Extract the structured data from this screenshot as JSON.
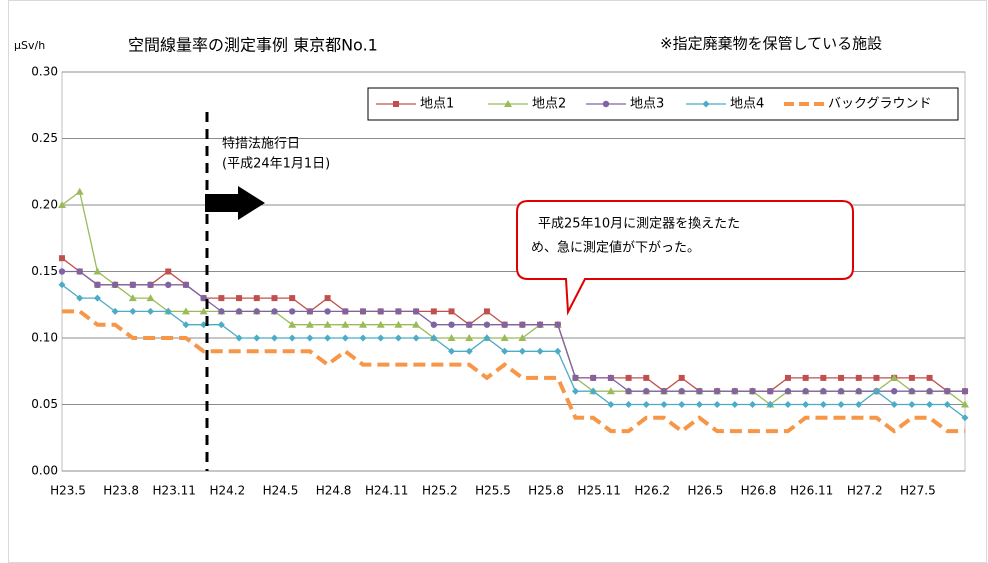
{
  "chart_data": {
    "type": "line",
    "title": "空間線量率の測定事例  東京都No.1",
    "subtitle": "※指定廃棄物を保管している施設",
    "y_label": "μSv/h",
    "annotations": [
      "特措法施行日",
      "(平成24年1月1日)",
      "平成25年10月に測定器を換えたた",
      "め、急に測定値が下がった。"
    ],
    "categories": [
      "H23.5",
      null,
      null,
      "H23.8",
      null,
      null,
      "H23.11",
      null,
      null,
      "H24.2",
      null,
      null,
      "H24.5",
      null,
      null,
      "H24.8",
      null,
      null,
      "H24.11",
      null,
      null,
      "H25.2",
      null,
      null,
      "H25.5",
      null,
      null,
      "H25.8",
      null,
      null,
      "H25.11",
      null,
      null,
      "H26.2",
      null,
      null,
      "H26.5",
      null,
      null,
      "H26.8",
      null,
      null,
      "H26.11",
      null,
      null,
      "H27.2",
      null,
      null,
      "H27.5",
      null,
      null,
      null
    ],
    "ylim": [
      0,
      0.3
    ],
    "yticks": [
      {
        "value": 0,
        "label": "0.00"
      },
      0.05,
      {
        "value": 0.1,
        "label": "0.10"
      },
      0.15,
      {
        "value": 0.2,
        "label": "0.20"
      },
      0.25,
      {
        "value": 0.3,
        "label": "0.30"
      }
    ],
    "grid": true,
    "legend": "top-right",
    "series": [
      {
        "name": "地点1",
        "color": "#c0504d",
        "marker": "square",
        "values": [
          0.16,
          0.15,
          0.14,
          0.14,
          0.14,
          0.14,
          0.15,
          0.14,
          0.13,
          0.13,
          0.13,
          0.13,
          0.13,
          0.13,
          0.12,
          0.13,
          0.12,
          0.12,
          0.12,
          0.12,
          0.12,
          0.12,
          0.12,
          0.11,
          0.12,
          0.11,
          0.11,
          0.11,
          0.11,
          0.07,
          0.07,
          0.07,
          0.07,
          0.07,
          0.06,
          0.07,
          0.06,
          0.06,
          0.06,
          0.06,
          0.06,
          0.07,
          0.07,
          0.07,
          0.07,
          0.07,
          0.07,
          0.07,
          0.07,
          0.07,
          0.06,
          0.06
        ]
      },
      {
        "name": "地点2",
        "color": "#9bbb59",
        "marker": "triangle",
        "values": [
          0.2,
          0.21,
          0.15,
          0.14,
          0.13,
          0.13,
          0.12,
          0.12,
          0.12,
          0.12,
          0.12,
          0.12,
          0.12,
          0.11,
          0.11,
          0.11,
          0.11,
          0.11,
          0.11,
          0.11,
          0.11,
          0.1,
          0.1,
          0.1,
          0.1,
          0.1,
          0.1,
          0.11,
          0.11,
          0.07,
          0.06,
          0.06,
          0.06,
          0.06,
          0.06,
          0.06,
          0.06,
          0.06,
          0.06,
          0.06,
          0.05,
          0.06,
          0.06,
          0.06,
          0.06,
          0.06,
          0.06,
          0.07,
          0.06,
          0.06,
          0.06,
          0.05
        ]
      },
      {
        "name": "地点3",
        "color": "#8064a2",
        "marker": "circle",
        "values": [
          0.15,
          0.15,
          0.14,
          0.14,
          0.14,
          0.14,
          0.14,
          0.14,
          0.13,
          0.12,
          0.12,
          0.12,
          0.12,
          0.12,
          0.12,
          0.12,
          0.12,
          0.12,
          0.12,
          0.12,
          0.12,
          0.11,
          0.11,
          0.11,
          0.11,
          0.11,
          0.11,
          0.11,
          0.11,
          0.07,
          0.07,
          0.07,
          0.06,
          0.06,
          0.06,
          0.06,
          0.06,
          0.06,
          0.06,
          0.06,
          0.06,
          0.06,
          0.06,
          0.06,
          0.06,
          0.06,
          0.06,
          0.06,
          0.06,
          0.06,
          0.06,
          0.06
        ]
      },
      {
        "name": "地点4",
        "color": "#4bacc6",
        "marker": "diamond",
        "values": [
          0.14,
          0.13,
          0.13,
          0.12,
          0.12,
          0.12,
          0.12,
          0.11,
          0.11,
          0.11,
          0.1,
          0.1,
          0.1,
          0.1,
          0.1,
          0.1,
          0.1,
          0.1,
          0.1,
          0.1,
          0.1,
          0.1,
          0.09,
          0.09,
          0.1,
          0.09,
          0.09,
          0.09,
          0.09,
          0.06,
          0.06,
          0.05,
          0.05,
          0.05,
          0.05,
          0.05,
          0.05,
          0.05,
          0.05,
          0.05,
          0.05,
          0.05,
          0.05,
          0.05,
          0.05,
          0.05,
          0.06,
          0.05,
          0.05,
          0.05,
          0.05,
          0.04
        ]
      },
      {
        "name": "バックグラウンド",
        "color": "#f79646",
        "marker": "none",
        "dashed": true,
        "values": [
          0.12,
          0.12,
          0.11,
          0.11,
          0.1,
          0.1,
          0.1,
          0.1,
          0.09,
          0.09,
          0.09,
          0.09,
          0.09,
          0.09,
          0.09,
          0.08,
          0.09,
          0.08,
          0.08,
          0.08,
          0.08,
          0.08,
          0.08,
          0.08,
          0.07,
          0.08,
          0.07,
          0.07,
          0.07,
          0.04,
          0.04,
          0.03,
          0.03,
          0.04,
          0.04,
          0.03,
          0.04,
          0.03,
          0.03,
          0.03,
          0.03,
          0.03,
          0.04,
          0.04,
          0.04,
          0.04,
          0.04,
          0.03,
          0.04,
          0.04,
          0.03,
          0.03
        ]
      }
    ]
  }
}
